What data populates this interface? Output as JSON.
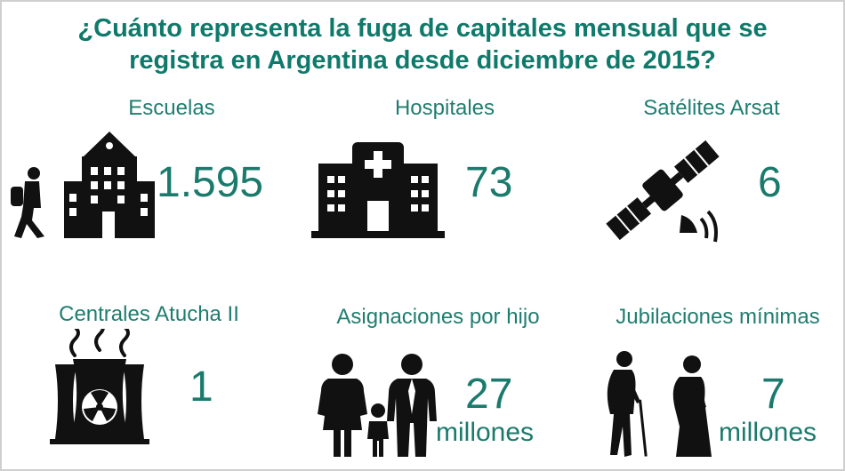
{
  "title": {
    "line1": "¿Cuánto representa la fuga de capitales mensual que se",
    "line2": "registra en Argentina desde diciembre  de 2015?"
  },
  "items": [
    {
      "label": "Escuelas",
      "value": "1.595",
      "unit": "",
      "icon": "school-icon"
    },
    {
      "label": "Hospitales",
      "value": "73",
      "unit": "",
      "icon": "hospital-icon"
    },
    {
      "label": "Satélites Arsat",
      "value": "6",
      "unit": "",
      "icon": "satellite-icon"
    },
    {
      "label": "Centrales Atucha II",
      "value": "1",
      "unit": "",
      "icon": "nuclear-plant-icon"
    },
    {
      "label": "Asignaciones por hijo",
      "value": "27",
      "unit": "millones",
      "icon": "family-icon"
    },
    {
      "label": "Jubilaciones mínimas",
      "value": "7",
      "unit": "millones",
      "icon": "elderly-couple-icon"
    }
  ],
  "colors": {
    "accent": "#0f7a6b",
    "icon": "#111111"
  }
}
